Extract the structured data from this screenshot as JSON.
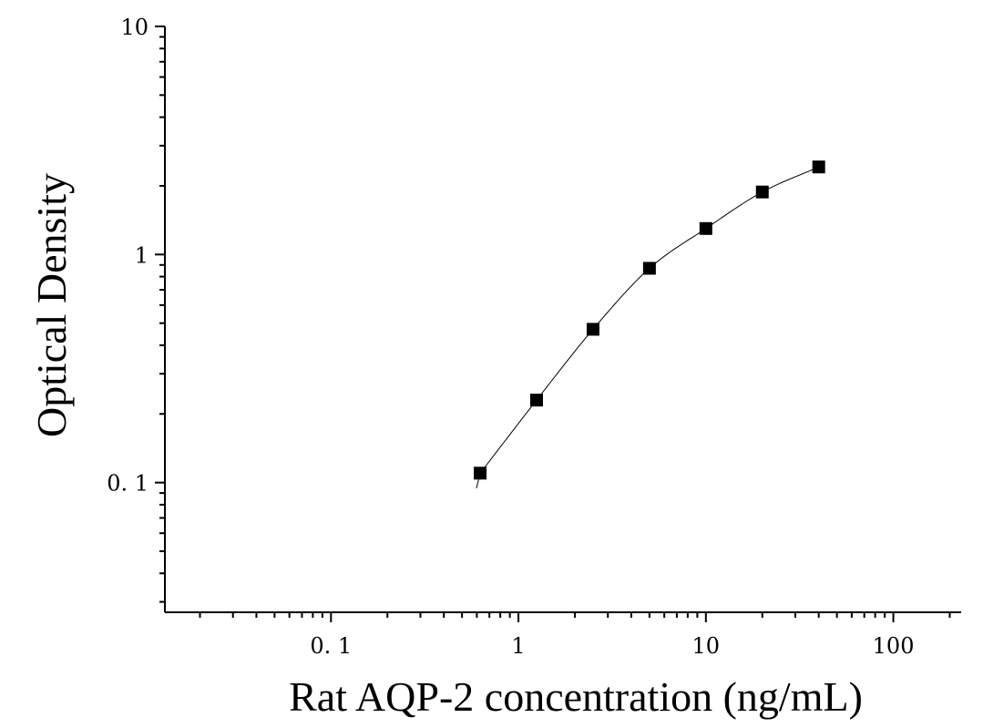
{
  "chart_data": {
    "type": "scatter",
    "xlabel": "Rat AQP-2 concentration (ng/mL)",
    "ylabel": "Optical Density",
    "x_scale": "log",
    "y_scale": "log",
    "xlim": [
      0.013,
      230
    ],
    "ylim": [
      0.027,
      10
    ],
    "x_ticks": [
      {
        "value": 0.1,
        "label": "0. 1"
      },
      {
        "value": 1,
        "label": "1"
      },
      {
        "value": 10,
        "label": "10"
      },
      {
        "value": 100,
        "label": "100"
      }
    ],
    "y_ticks": [
      {
        "value": 0.1,
        "label": "0. 1"
      },
      {
        "value": 1,
        "label": "1"
      },
      {
        "value": 10,
        "label": "10"
      }
    ],
    "grid": false,
    "series": [
      {
        "marker": "square",
        "color": "#000000",
        "points": [
          {
            "x": 0.625,
            "y": 0.11
          },
          {
            "x": 1.25,
            "y": 0.23
          },
          {
            "x": 2.5,
            "y": 0.47
          },
          {
            "x": 5,
            "y": 0.87
          },
          {
            "x": 10,
            "y": 1.3
          },
          {
            "x": 20,
            "y": 1.88
          },
          {
            "x": 40,
            "y": 2.42
          }
        ]
      }
    ],
    "fit_curve": {
      "color": "#000000",
      "x_range": [
        0.625,
        40
      ]
    }
  }
}
